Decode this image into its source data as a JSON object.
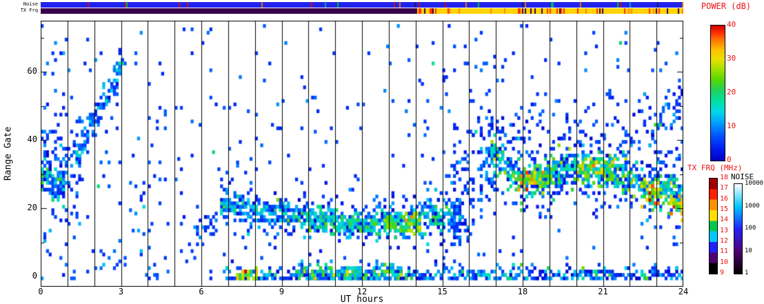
{
  "page": {
    "background": "#ffffff"
  },
  "strips": {
    "noise": {
      "label": "Noise",
      "base_color": "#2222ee",
      "tick_colors": [
        "#00b830",
        "#00a890",
        "#e07000",
        "#cc1111",
        "#151570"
      ],
      "tick_probability": 0.045
    },
    "txfrq": {
      "label": "TX Frq",
      "segments": [
        {
          "t0": 0,
          "t1": 14,
          "color": "#38004c"
        },
        {
          "t0": 14,
          "t1": 24,
          "color": "#ffd400"
        }
      ],
      "speckle": {
        "t0": 14,
        "t1": 24,
        "colors": [
          "#ff3000",
          "#ff3000",
          "#ff8800",
          "#38004c"
        ],
        "probability": 0.28
      }
    }
  },
  "axes": {
    "xlabel": "UT hours",
    "ylabel": "Range Gate",
    "x_ticks": [
      0,
      3,
      6,
      9,
      12,
      15,
      18,
      21,
      24
    ],
    "y_ticks": [
      0,
      20,
      40,
      60
    ],
    "x_range": [
      0,
      24
    ],
    "y_range": [
      0,
      75
    ],
    "hourly_gridlines": true
  },
  "colorbars": {
    "power": {
      "label": "POWER (dB)",
      "label_color": "#ee1111",
      "range": [
        0,
        40
      ],
      "ticks": [
        40,
        30,
        20,
        10,
        0
      ],
      "stops": [
        [
          0.0,
          "#0000c0"
        ],
        [
          0.08,
          "#0018f0"
        ],
        [
          0.18,
          "#0050ff"
        ],
        [
          0.28,
          "#00a0ff"
        ],
        [
          0.36,
          "#00d8e8"
        ],
        [
          0.44,
          "#00e0a0"
        ],
        [
          0.52,
          "#20d060"
        ],
        [
          0.6,
          "#58d800"
        ],
        [
          0.68,
          "#a8e000"
        ],
        [
          0.75,
          "#e8e000"
        ],
        [
          0.82,
          "#ffc000"
        ],
        [
          0.89,
          "#ff7800"
        ],
        [
          0.95,
          "#ff2800"
        ],
        [
          1.0,
          "#cc0000"
        ]
      ]
    },
    "txfrq": {
      "label": "TX FRQ (MHz)",
      "label_color": "#ee1111",
      "range": [
        9,
        18
      ],
      "ticks": [
        18,
        17,
        16,
        15,
        14,
        13,
        12,
        11,
        10,
        9
      ],
      "segment_colors_bottom_to_top": [
        "#000000",
        "#500070",
        "#2222ff",
        "#00c8ff",
        "#00c850",
        "#ffe000",
        "#ff9000",
        "#ff2000",
        "#a00000"
      ]
    },
    "noise": {
      "label": "NOISE",
      "label_color": "#000000",
      "ticks": [
        10000,
        1000,
        100,
        10,
        1
      ],
      "log_range": [
        1,
        10000
      ],
      "stops": [
        [
          0.0,
          "#000000"
        ],
        [
          0.25,
          "#500070"
        ],
        [
          0.5,
          "#2222ff"
        ],
        [
          0.75,
          "#00c8ff"
        ],
        [
          1.0,
          "#ffffff"
        ]
      ]
    }
  },
  "chart_data": {
    "type": "heatmap",
    "title": "",
    "xlabel": "UT hours",
    "ylabel": "Range Gate",
    "value_label": "POWER (dB)",
    "x_range": [
      0,
      24
    ],
    "y_range": [
      0,
      75
    ],
    "value_range": [
      0,
      40
    ],
    "seed": 7,
    "time_step_hours": 0.1,
    "background": {
      "density": 0.02,
      "power_mean": 4,
      "power_spread": 3,
      "hot_fraction": 0.04,
      "hot_boost": 12
    },
    "speckle_regions": [
      {
        "t0": 0,
        "t1": 1.2,
        "g0": 0,
        "g1": 74,
        "density": 0.04
      },
      {
        "t0": 3.5,
        "t1": 4.3,
        "g0": 0,
        "g1": 28,
        "density": 0.05
      },
      {
        "t0": 5.0,
        "t1": 5.4,
        "g0": 0,
        "g1": 40,
        "density": 0.03
      },
      {
        "t0": 8.0,
        "t1": 8.6,
        "g0": 26,
        "g1": 34,
        "density": 0.06
      },
      {
        "t0": 14.4,
        "t1": 15.4,
        "g0": 22,
        "g1": 62,
        "density": 0.04
      },
      {
        "t0": 16.0,
        "t1": 16.7,
        "g0": 40,
        "g1": 72,
        "density": 0.035
      },
      {
        "t0": 0,
        "t1": 24,
        "g0": 0,
        "g1": 5,
        "density": 0.02
      }
    ],
    "features": [
      {
        "name": "early-core",
        "t0": 0.0,
        "t1": 0.8,
        "g0": 30,
        "g1": 27,
        "spread": 3.5,
        "density": 0.8,
        "power_mean": 13,
        "power_spread": 6
      },
      {
        "name": "early-halo",
        "t0": 0.0,
        "t1": 1.5,
        "g0": 33,
        "g1": 30,
        "spread": 8,
        "density": 0.18,
        "power_mean": 6,
        "power_spread": 3
      },
      {
        "name": "dawn-rising-streak",
        "t0": 1.25,
        "t1": 3.05,
        "g0": 36,
        "g1": 64,
        "spread": 2.2,
        "density": 0.75,
        "power_mean": 9,
        "power_spread": 4
      },
      {
        "name": "dawn-streak-halo",
        "t0": 1.2,
        "t1": 3.0,
        "g0": 38,
        "g1": 60,
        "spread": 6,
        "density": 0.08,
        "power_mean": 5,
        "power_spread": 2
      },
      {
        "name": "morning-cluster",
        "t0": 5.8,
        "t1": 6.5,
        "g0": 14,
        "g1": 15,
        "spread": 2.5,
        "density": 0.35,
        "power_mean": 6,
        "power_spread": 3
      },
      {
        "name": "midday-band",
        "t0": 6.7,
        "t1": 15.6,
        "path": [
          [
            6.7,
            22
          ],
          [
            8.0,
            19.5
          ],
          [
            9.5,
            18.0
          ],
          [
            11.0,
            16.5
          ],
          [
            12.5,
            16.5
          ],
          [
            13.6,
            17.0
          ],
          [
            14.6,
            18.0
          ],
          [
            15.6,
            19.0
          ]
        ],
        "spread": 2.4,
        "density": 0.9,
        "power_mean": 12,
        "power_spread": 5
      },
      {
        "name": "midday-band-halo",
        "t0": 6.7,
        "t1": 15.6,
        "path": [
          [
            6.7,
            22
          ],
          [
            9.5,
            18
          ],
          [
            12.5,
            17
          ],
          [
            15.6,
            19
          ]
        ],
        "spread": 6,
        "density": 0.1,
        "power_mean": 5,
        "power_spread": 3
      },
      {
        "name": "midday-warm-core",
        "t0": 10.2,
        "t1": 12.4,
        "g0": 17,
        "g1": 16,
        "spread": 1.6,
        "density": 0.7,
        "power_mean": 17,
        "power_spread": 4
      },
      {
        "name": "midday-hot-core",
        "t0": 12.75,
        "t1": 14.2,
        "g0": 16.5,
        "g1": 16,
        "spread": 1.8,
        "density": 0.95,
        "power_mean": 23,
        "power_spread": 5
      },
      {
        "name": "near-range-band",
        "t0": 6.9,
        "t1": 24,
        "g0": 1,
        "g1": 1,
        "spread": 1.3,
        "density": 0.55,
        "power_mean": 9,
        "power_spread": 6
      },
      {
        "name": "near-range-hot",
        "t0": 7.3,
        "t1": 8.05,
        "g0": 1,
        "g1": 1,
        "spread": 1.1,
        "density": 1.0,
        "power_mean": 28,
        "power_spread": 6
      },
      {
        "name": "near-range-mid",
        "t0": 9.6,
        "t1": 13.4,
        "g0": 1.5,
        "g1": 1.5,
        "spread": 1.5,
        "density": 0.9,
        "power_mean": 15,
        "power_spread": 7
      },
      {
        "name": "afternoon-column",
        "t0": 15.35,
        "t1": 16.45,
        "g0": 20,
        "g1": 30,
        "spread": 13,
        "density": 0.2,
        "power_mean": 6,
        "power_spread": 3
      },
      {
        "name": "pre-evening-scatter",
        "t0": 16.45,
        "t1": 16.95,
        "g0": 33,
        "g1": 36,
        "spread": 8,
        "density": 0.35,
        "power_mean": 8,
        "power_spread": 4
      },
      {
        "name": "evening-band",
        "t0": 16.8,
        "t1": 24,
        "path": [
          [
            16.8,
            37
          ],
          [
            17.4,
            31.5
          ],
          [
            18.1,
            28.5
          ],
          [
            19.0,
            30
          ],
          [
            20.0,
            32
          ],
          [
            21.0,
            32
          ],
          [
            21.8,
            30.5
          ],
          [
            22.4,
            28
          ],
          [
            23.0,
            25.5
          ],
          [
            23.5,
            26
          ],
          [
            24,
            22.5
          ]
        ],
        "spread": 3,
        "density": 0.95,
        "power_mean": 16,
        "power_spread": 6
      },
      {
        "name": "evening-halo",
        "t0": 16.7,
        "t1": 24,
        "path": [
          [
            16.8,
            39
          ],
          [
            18,
            30
          ],
          [
            20,
            33
          ],
          [
            22,
            31
          ],
          [
            24,
            26
          ]
        ],
        "spread": 8,
        "density": 0.13,
        "power_mean": 5,
        "power_spread": 3
      },
      {
        "name": "evening-hot-1",
        "t0": 17.75,
        "t1": 18.45,
        "g0": 28,
        "g1": 29,
        "spread": 1.7,
        "density": 0.95,
        "power_mean": 29,
        "power_spread": 6
      },
      {
        "name": "evening-hot-2",
        "t0": 18.5,
        "t1": 19.2,
        "g0": 29.5,
        "g1": 30,
        "spread": 1.6,
        "density": 0.8,
        "power_mean": 23,
        "power_spread": 4
      },
      {
        "name": "evening-hot-3",
        "t0": 20.0,
        "t1": 21.4,
        "g0": 32,
        "g1": 31.5,
        "spread": 1.8,
        "density": 0.8,
        "power_mean": 23,
        "power_spread": 5
      },
      {
        "name": "evening-hot-4",
        "t0": 22.35,
        "t1": 23.1,
        "g0": 26,
        "g1": 24.5,
        "spread": 1.9,
        "density": 0.95,
        "power_mean": 30,
        "power_spread": 7
      },
      {
        "name": "evening-hot-5",
        "t0": 23.5,
        "t1": 24,
        "g0": 22.5,
        "g1": 19.5,
        "spread": 1.8,
        "density": 0.95,
        "power_mean": 27,
        "power_spread": 7
      },
      {
        "name": "late-rising-streak",
        "t0": 22.7,
        "t1": 23.45,
        "g0": 40,
        "g1": 54,
        "spread": 1.8,
        "density": 0.6,
        "power_mean": 10,
        "power_spread": 4
      },
      {
        "name": "late-top-scatter",
        "t0": 23.6,
        "t1": 24,
        "g0": 50,
        "g1": 56,
        "spread": 3.5,
        "density": 0.35,
        "power_mean": 8,
        "power_spread": 4
      },
      {
        "name": "evening-upper-scatter",
        "t0": 17,
        "t1": 24,
        "g0": 46,
        "g1": 46,
        "spread": 7,
        "density": 0.05,
        "power_mean": 5,
        "power_spread": 3
      }
    ]
  }
}
